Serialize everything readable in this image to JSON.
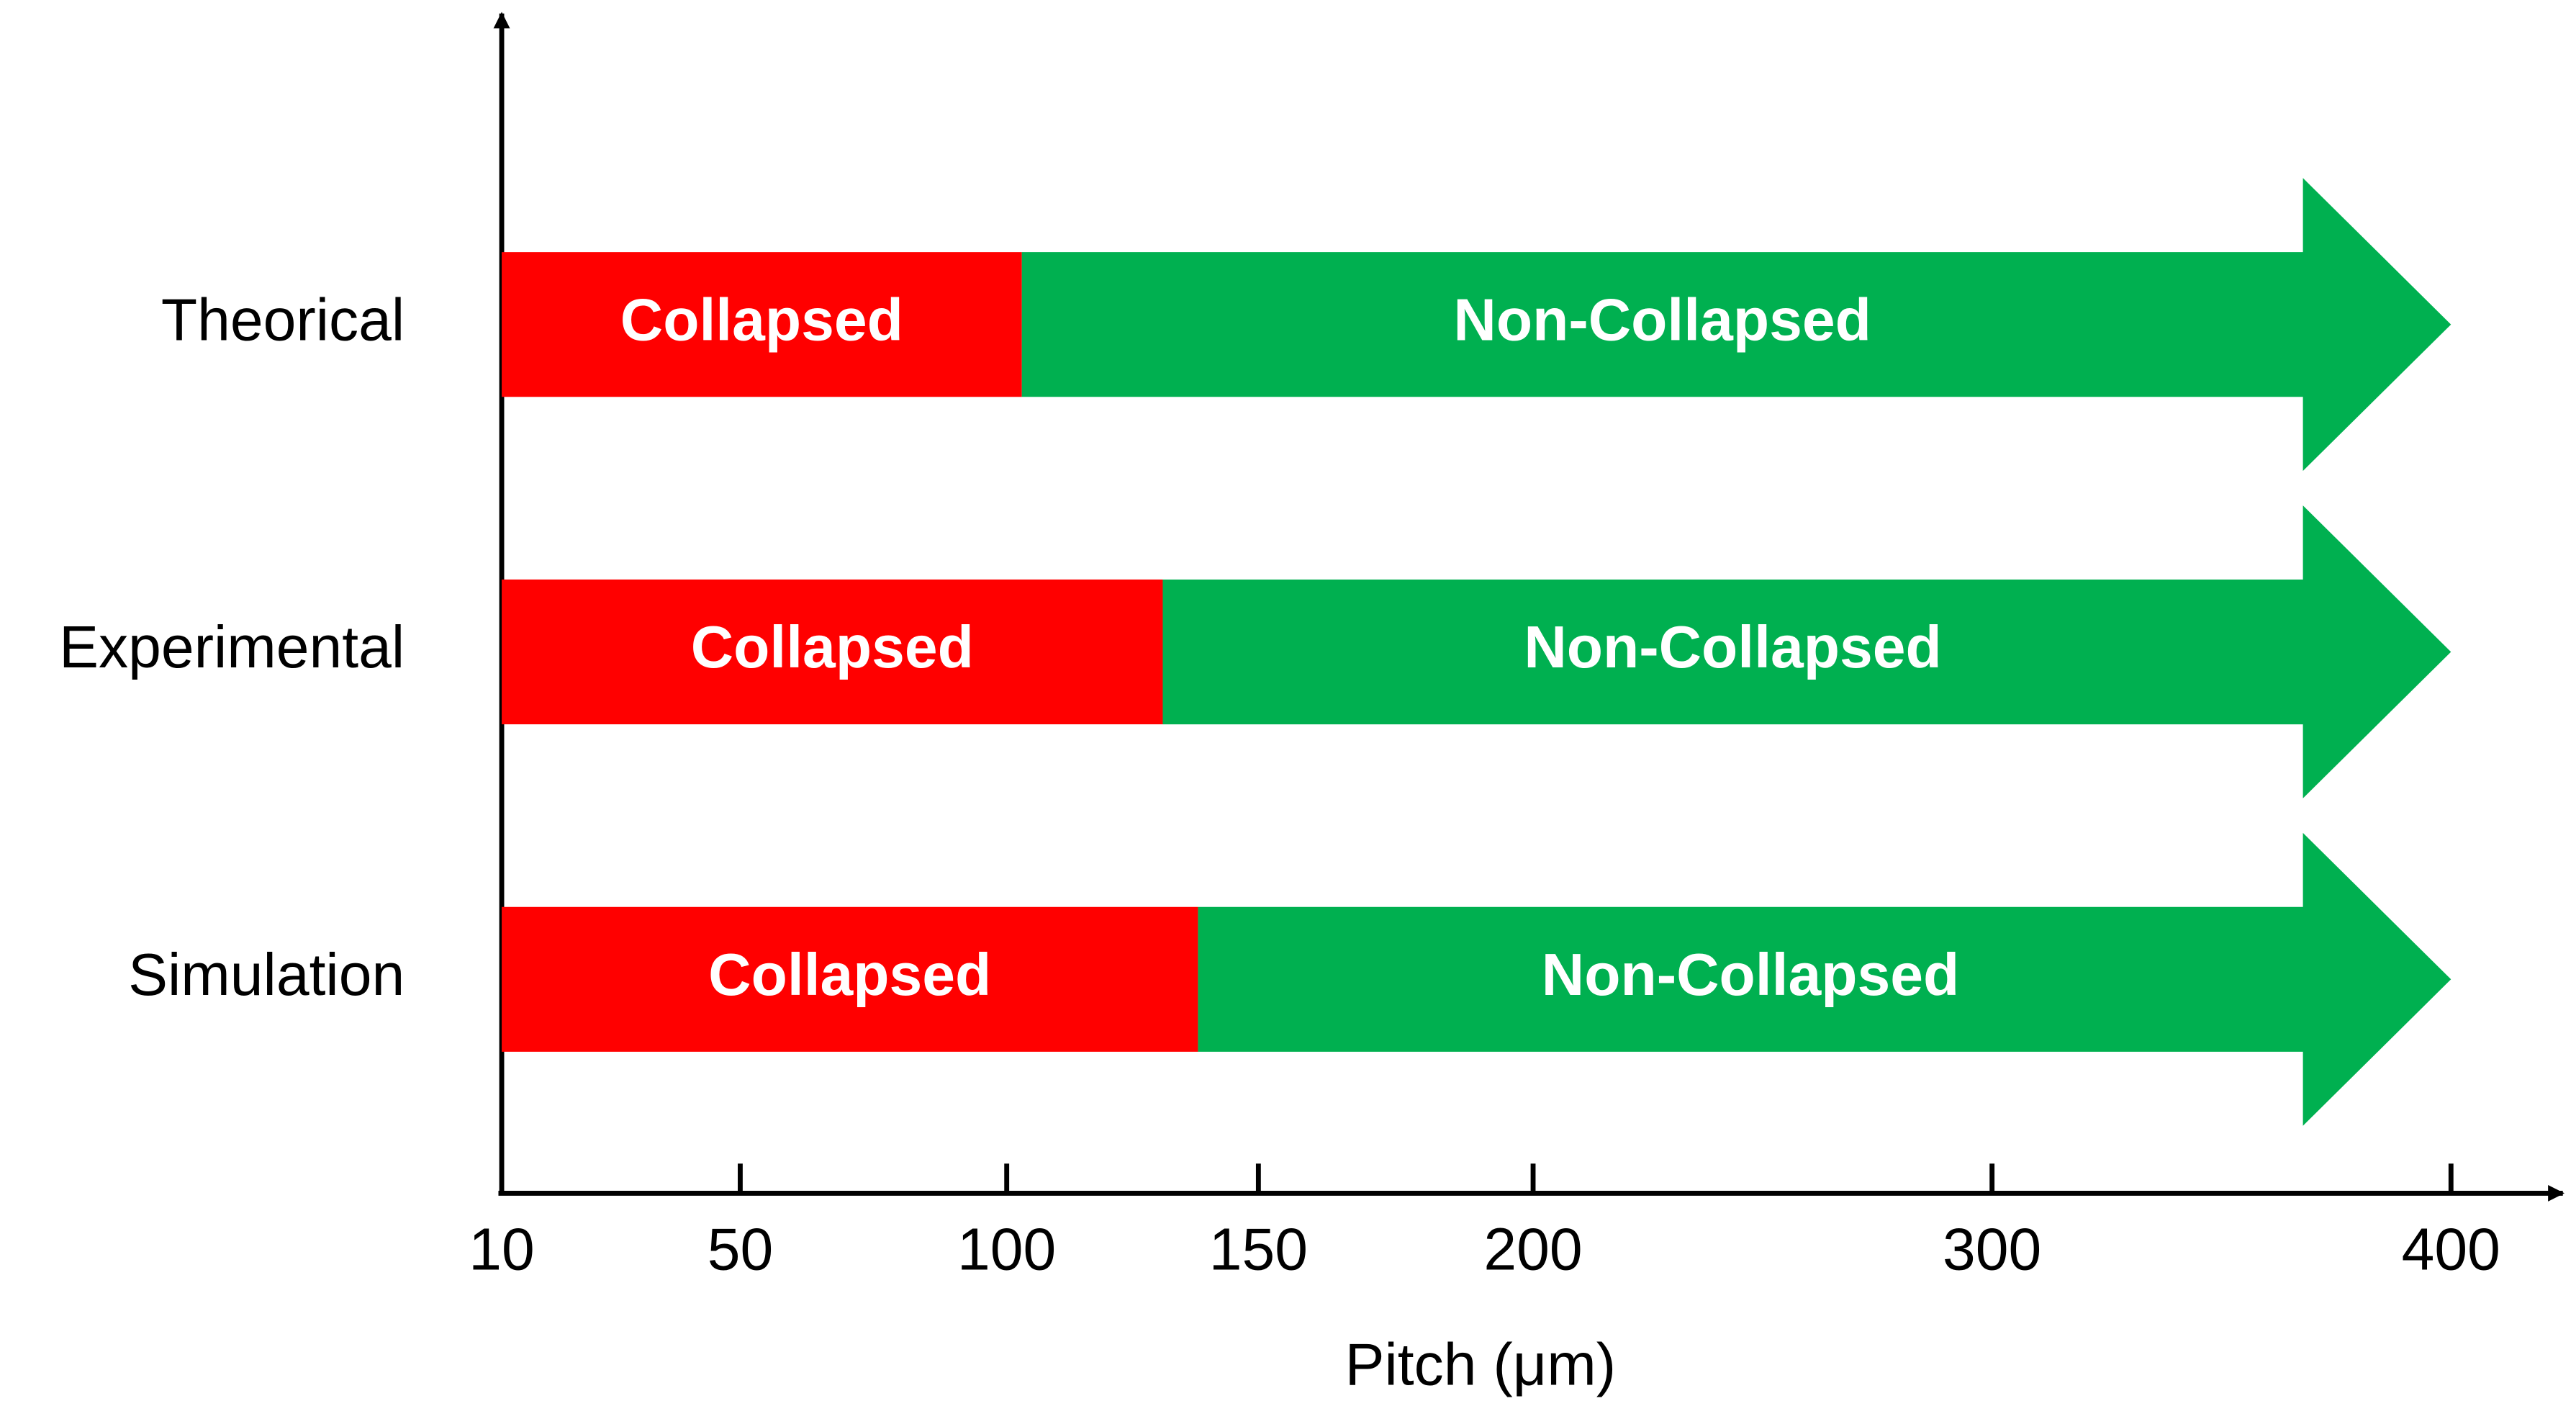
{
  "chart_data": {
    "type": "range-arrow",
    "categories": [
      "Theorical",
      "Experimental",
      "Simulation"
    ],
    "series": [
      {
        "name": "Collapsed",
        "color": "#ff0000",
        "values": [
          103,
          131,
          138
        ]
      },
      {
        "name": "Non-Collapsed",
        "color": "#00b050",
        "values": [
          400,
          400,
          400
        ]
      }
    ],
    "x_label": "Pitch (μm)",
    "xlim": [
      10,
      400
    ],
    "xticks": [
      10,
      50,
      100,
      150,
      200,
      300,
      400
    ]
  }
}
